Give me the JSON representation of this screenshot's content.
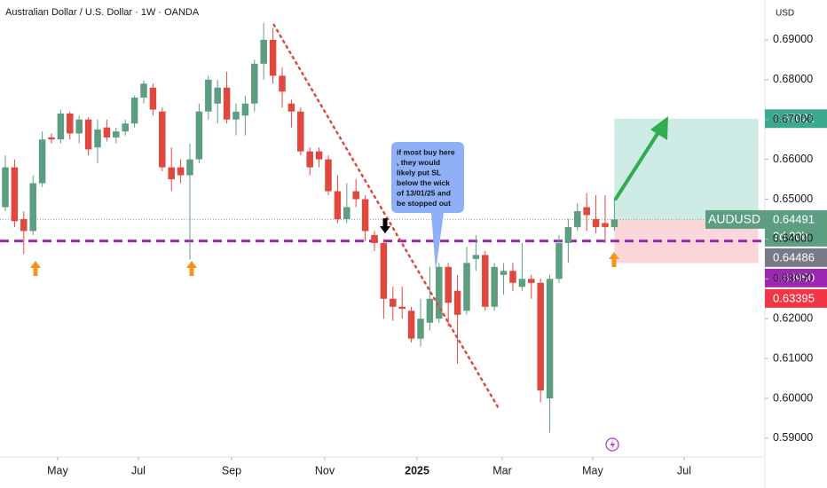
{
  "chart_data": {
    "type": "candlestick",
    "title": "Australian Dollar / U.S. Dollar · 1W · OANDA",
    "currency": "USD",
    "up_color": "#5e9e80",
    "down_color": "#e0473f",
    "open": [
      0.648,
      0.658,
      0.645,
      0.642,
      0.654,
      0.6655,
      0.665,
      0.6715,
      0.6665,
      0.67,
      0.663,
      0.668,
      0.6655,
      0.667,
      0.669,
      0.6755,
      0.678,
      0.672,
      0.658,
      0.658,
      0.656,
      0.66,
      0.672,
      0.674,
      0.678,
      0.67,
      0.671,
      0.674,
      0.684,
      0.69,
      0.681,
      0.674,
      0.672,
      0.662,
      0.662,
      0.66,
      0.652,
      0.645,
      0.652,
      0.65,
      0.641,
      0.639,
      0.625,
      0.623,
      0.622,
      0.615,
      0.619,
      0.62,
      0.633,
      0.627,
      0.622,
      0.635,
      0.636,
      0.623,
      0.631,
      0.632,
      0.628,
      0.63,
      0.629,
      0.6,
      0.63,
      0.639,
      0.643,
      0.648,
      0.645,
      0.644,
      0.643
    ],
    "high": [
      0.661,
      0.66,
      0.647,
      0.656,
      0.667,
      0.6665,
      0.6725,
      0.672,
      0.671,
      0.6705,
      0.67,
      0.67,
      0.668,
      0.67,
      0.676,
      0.6798,
      0.679,
      0.673,
      0.663,
      0.66,
      0.664,
      0.674,
      0.681,
      0.68,
      0.682,
      0.674,
      0.676,
      0.685,
      0.6942,
      0.693,
      0.683,
      0.675,
      0.673,
      0.663,
      0.663,
      0.661,
      0.656,
      0.654,
      0.655,
      0.651,
      0.642,
      0.64,
      0.628,
      0.628,
      0.623,
      0.625,
      0.633,
      0.634,
      0.634,
      0.631,
      0.638,
      0.641,
      0.637,
      0.634,
      0.634,
      0.634,
      0.639,
      0.631,
      0.63,
      0.631,
      0.641,
      0.645,
      0.649,
      0.6515,
      0.651,
      0.651,
      0.65
    ],
    "low": [
      0.647,
      0.643,
      0.6362,
      0.641,
      0.653,
      0.664,
      0.664,
      0.665,
      0.664,
      0.661,
      0.659,
      0.6645,
      0.664,
      0.666,
      0.668,
      0.674,
      0.671,
      0.657,
      0.652,
      0.654,
      0.6349,
      0.659,
      0.67,
      0.669,
      0.669,
      0.666,
      0.666,
      0.672,
      0.68,
      0.679,
      0.673,
      0.668,
      0.661,
      0.656,
      0.658,
      0.651,
      0.644,
      0.644,
      0.648,
      0.6395,
      0.637,
      0.62,
      0.6195,
      0.62,
      0.614,
      0.613,
      0.617,
      0.619,
      0.618,
      0.6087,
      0.621,
      0.632,
      0.622,
      0.622,
      0.626,
      0.627,
      0.627,
      0.625,
      0.599,
      0.5914,
      0.629,
      0.634,
      0.642,
      0.642,
      0.6415,
      0.639,
      0.642
    ],
    "close": [
      0.658,
      0.6445,
      0.642,
      0.654,
      0.665,
      0.665,
      0.6715,
      0.6665,
      0.67,
      0.6625,
      0.6675,
      0.6655,
      0.667,
      0.669,
      0.6755,
      0.679,
      0.6725,
      0.658,
      0.655,
      0.656,
      0.66,
      0.672,
      0.68,
      0.678,
      0.67,
      0.672,
      0.674,
      0.684,
      0.69,
      0.681,
      0.677,
      0.672,
      0.662,
      0.658,
      0.66,
      0.652,
      0.645,
      0.648,
      0.65,
      0.642,
      0.639,
      0.625,
      0.623,
      0.6225,
      0.615,
      0.62,
      0.625,
      0.633,
      0.624,
      0.621,
      0.634,
      0.636,
      0.623,
      0.633,
      0.632,
      0.629,
      0.63,
      0.629,
      0.602,
      0.63,
      0.639,
      0.643,
      0.647,
      0.646,
      0.643,
      0.643,
      0.64491
    ],
    "xlim": [
      -0.577,
      82.31
    ],
    "ylim": [
      0.5853,
      0.7
    ],
    "xticks": [
      {
        "value": 5.67,
        "label": "May"
      },
      {
        "value": 14.42,
        "label": "Jul"
      },
      {
        "value": 24.52,
        "label": "Sep"
      },
      {
        "value": 34.62,
        "label": "Nov"
      },
      {
        "value": 44.62,
        "label": "2025"
      },
      {
        "value": 53.85,
        "label": "Mar"
      },
      {
        "value": 63.65,
        "label": "May"
      },
      {
        "value": 73.56,
        "label": "Jul"
      }
    ],
    "yticks": [
      {
        "value": 0.59,
        "label": "0.59000"
      },
      {
        "value": 0.6,
        "label": "0.60000"
      },
      {
        "value": 0.61,
        "label": "0.61000"
      },
      {
        "value": 0.62,
        "label": "0.62000"
      },
      {
        "value": 0.63,
        "label": "0.63000"
      },
      {
        "value": 0.64,
        "label": "0.64000"
      },
      {
        "value": 0.65,
        "label": "0.65000"
      },
      {
        "value": 0.66,
        "label": "0.66000"
      },
      {
        "value": 0.67,
        "label": "0.67000"
      },
      {
        "value": 0.68,
        "label": "0.68000"
      },
      {
        "value": 0.69,
        "label": "0.69000"
      }
    ],
    "symbol": "AUDUSD",
    "last_price": {
      "value": 0.64491,
      "countdown": "3d 20h",
      "color": "#5e9e80"
    },
    "price_tags": [
      {
        "value": 0.67021,
        "color": "#3aa98f"
      },
      {
        "value": 0.64486,
        "color": "#787b86"
      },
      {
        "value": 0.6395,
        "label": "0.63950",
        "color": "#9c27b0"
      },
      {
        "value": 0.63395,
        "color": "#f23645"
      }
    ],
    "position": {
      "from": 66,
      "to": 81.6
    },
    "trend_line": {
      "x": [
        29.1,
        53.56
      ],
      "y": [
        0.6938,
        0.5971
      ],
      "color": "#e0473f"
    },
    "annotation": [
      "if most buy here",
      ", they would",
      "likely put SL",
      "below the wick",
      "of 13/01/25 and",
      "be stopped out"
    ]
  }
}
